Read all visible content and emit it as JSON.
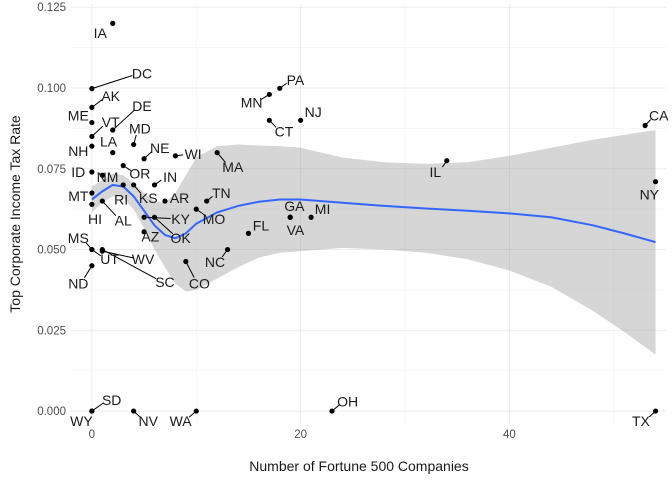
{
  "chart_data": {
    "type": "scatter",
    "title": "",
    "xlabel": "Number of Fortune 500 Companies",
    "ylabel": "Top Corporate Income Tax Rate",
    "xlim": [
      -2,
      55
    ],
    "ylim": [
      -0.004,
      0.126
    ],
    "x_ticks": [
      0,
      20,
      40
    ],
    "y_ticks": [
      0.0,
      0.025,
      0.05,
      0.075,
      0.1,
      0.125
    ],
    "y_tick_labels": [
      "0.000",
      "0.025",
      "0.050",
      "0.075",
      "0.100",
      "0.125"
    ],
    "grid": true,
    "smooth_color": "#3366FF",
    "band_color": "#999999",
    "points": [
      {
        "label": "IA",
        "x": 2,
        "y": 0.12,
        "lx": 0.8,
        "ly": 0.117
      },
      {
        "label": "DC",
        "x": 0,
        "y": 0.0998,
        "lx": 4.8,
        "ly": 0.1045
      },
      {
        "label": "AK",
        "x": 0,
        "y": 0.094,
        "lx": 1.8,
        "ly": 0.0975
      },
      {
        "label": "ME",
        "x": 0,
        "y": 0.0893,
        "lx": -1.3,
        "ly": 0.0915
      },
      {
        "label": "VT",
        "x": 0,
        "y": 0.085,
        "lx": 1.8,
        "ly": 0.0895
      },
      {
        "label": "DE",
        "x": 2,
        "y": 0.087,
        "lx": 4.8,
        "ly": 0.0945
      },
      {
        "label": "MD",
        "x": 4,
        "y": 0.0825,
        "lx": 4.6,
        "ly": 0.0875
      },
      {
        "label": "LA",
        "x": 2,
        "y": 0.08,
        "lx": 1.6,
        "ly": 0.0835
      },
      {
        "label": "NH",
        "x": 0,
        "y": 0.082,
        "lx": -1.3,
        "ly": 0.0805
      },
      {
        "label": "NE",
        "x": 5,
        "y": 0.0781,
        "lx": 6.5,
        "ly": 0.0815
      },
      {
        "label": "WI",
        "x": 8,
        "y": 0.079,
        "lx": 9.7,
        "ly": 0.0795
      },
      {
        "label": "MA",
        "x": 12,
        "y": 0.08,
        "lx": 13.5,
        "ly": 0.0755
      },
      {
        "label": "ID",
        "x": 0,
        "y": 0.074,
        "lx": -1.3,
        "ly": 0.074
      },
      {
        "label": "NM",
        "x": 1,
        "y": 0.073,
        "lx": 1.5,
        "ly": 0.0725
      },
      {
        "label": "OR",
        "x": 3,
        "y": 0.076,
        "lx": 4.6,
        "ly": 0.0735
      },
      {
        "label": "IN",
        "x": 6,
        "y": 0.07,
        "lx": 7.5,
        "ly": 0.0725
      },
      {
        "label": "MT",
        "x": 0,
        "y": 0.0675,
        "lx": -1.3,
        "ly": 0.0665
      },
      {
        "label": "RI",
        "x": 3,
        "y": 0.07,
        "lx": 2.8,
        "ly": 0.0655
      },
      {
        "label": "KS",
        "x": 4,
        "y": 0.07,
        "lx": 5.4,
        "ly": 0.066
      },
      {
        "label": "AR",
        "x": 7,
        "y": 0.065,
        "lx": 8.4,
        "ly": 0.066
      },
      {
        "label": "TN",
        "x": 11,
        "y": 0.065,
        "lx": 12.4,
        "ly": 0.0675
      },
      {
        "label": "HI",
        "x": 0,
        "y": 0.064,
        "lx": 0.3,
        "ly": 0.0595
      },
      {
        "label": "AL",
        "x": 1,
        "y": 0.065,
        "lx": 3,
        "ly": 0.059
      },
      {
        "label": "KY",
        "x": 5,
        "y": 0.06,
        "lx": 8.5,
        "ly": 0.0595
      },
      {
        "label": "MO",
        "x": 10,
        "y": 0.0625,
        "lx": 11.7,
        "ly": 0.0595
      },
      {
        "label": "GA",
        "x": 19,
        "y": 0.06,
        "lx": 19.4,
        "ly": 0.0635
      },
      {
        "label": "MI",
        "x": 21,
        "y": 0.06,
        "lx": 22.1,
        "ly": 0.0625
      },
      {
        "label": "FL",
        "x": 15,
        "y": 0.055,
        "lx": 16.2,
        "ly": 0.0575
      },
      {
        "label": "VA",
        "x": 19,
        "y": 0.06,
        "lx": 19.5,
        "ly": 0.056
      },
      {
        "label": "AZ",
        "x": 5,
        "y": 0.0555,
        "lx": 5.6,
        "ly": 0.054
      },
      {
        "label": "OK",
        "x": 6,
        "y": 0.06,
        "lx": 8.5,
        "ly": 0.0535
      },
      {
        "label": "MS",
        "x": 0,
        "y": 0.05,
        "lx": -1.3,
        "ly": 0.0535
      },
      {
        "label": "UT",
        "x": 0,
        "y": 0.05,
        "lx": 1.7,
        "ly": 0.047
      },
      {
        "label": "WV",
        "x": 1,
        "y": 0.0495,
        "lx": 4.9,
        "ly": 0.047
      },
      {
        "label": "NC",
        "x": 13,
        "y": 0.05,
        "lx": 11.8,
        "ly": 0.0462
      },
      {
        "label": "ND",
        "x": 0,
        "y": 0.045,
        "lx": -1.3,
        "ly": 0.0395
      },
      {
        "label": "SC",
        "x": 1,
        "y": 0.05,
        "lx": 7,
        "ly": 0.04
      },
      {
        "label": "CO",
        "x": 9,
        "y": 0.0463,
        "lx": 10.3,
        "ly": 0.0395
      },
      {
        "label": "PA",
        "x": 18,
        "y": 0.0999,
        "lx": 19.5,
        "ly": 0.1025
      },
      {
        "label": "MN",
        "x": 17,
        "y": 0.098,
        "lx": 15.3,
        "ly": 0.0955
      },
      {
        "label": "NJ",
        "x": 20,
        "y": 0.09,
        "lx": 21.2,
        "ly": 0.0925
      },
      {
        "label": "CT",
        "x": 17,
        "y": 0.09,
        "lx": 18.4,
        "ly": 0.0865
      },
      {
        "label": "IL",
        "x": 34,
        "y": 0.0775,
        "lx": 32.9,
        "ly": 0.074
      },
      {
        "label": "CA",
        "x": 53,
        "y": 0.0884,
        "lx": 54.3,
        "ly": 0.0915
      },
      {
        "label": "NY",
        "x": 54,
        "y": 0.071,
        "lx": 53.4,
        "ly": 0.067
      },
      {
        "label": "SD",
        "x": 0,
        "y": 0,
        "lx": 1.9,
        "ly": 0.0035
      },
      {
        "label": "WY",
        "x": 0,
        "y": 0,
        "lx": -1,
        "ly": -0.003
      },
      {
        "label": "NV",
        "x": 4,
        "y": 0,
        "lx": 5.4,
        "ly": -0.003
      },
      {
        "label": "WA",
        "x": 10,
        "y": 0,
        "lx": 8.5,
        "ly": -0.003
      },
      {
        "label": "OH",
        "x": 23,
        "y": 0,
        "lx": 24.5,
        "ly": 0.003
      },
      {
        "label": "TX",
        "x": 54,
        "y": 0,
        "lx": 52.6,
        "ly": -0.003
      }
    ],
    "smooth": [
      {
        "x": 0,
        "y": 0.0655,
        "lo": 0.0615,
        "hi": 0.0695
      },
      {
        "x": 1,
        "y": 0.068,
        "lo": 0.0645,
        "hi": 0.0715
      },
      {
        "x": 2,
        "y": 0.07,
        "lo": 0.0665,
        "hi": 0.0735
      },
      {
        "x": 3,
        "y": 0.0695,
        "lo": 0.066,
        "hi": 0.073
      },
      {
        "x": 4,
        "y": 0.0665,
        "lo": 0.0625,
        "hi": 0.0705
      },
      {
        "x": 5,
        "y": 0.062,
        "lo": 0.0565,
        "hi": 0.0675
      },
      {
        "x": 6,
        "y": 0.0575,
        "lo": 0.05,
        "hi": 0.065
      },
      {
        "x": 7,
        "y": 0.0545,
        "lo": 0.0445,
        "hi": 0.0645
      },
      {
        "x": 8,
        "y": 0.0535,
        "lo": 0.0395,
        "hi": 0.0675
      },
      {
        "x": 9,
        "y": 0.055,
        "lo": 0.037,
        "hi": 0.073
      },
      {
        "x": 10,
        "y": 0.058,
        "lo": 0.0375,
        "hi": 0.0785
      },
      {
        "x": 12,
        "y": 0.0615,
        "lo": 0.041,
        "hi": 0.082
      },
      {
        "x": 14,
        "y": 0.0635,
        "lo": 0.0445,
        "hi": 0.0825
      },
      {
        "x": 16,
        "y": 0.0648,
        "lo": 0.0475,
        "hi": 0.0822
      },
      {
        "x": 18,
        "y": 0.0655,
        "lo": 0.049,
        "hi": 0.082
      },
      {
        "x": 20,
        "y": 0.0655,
        "lo": 0.0495,
        "hi": 0.0815
      },
      {
        "x": 24,
        "y": 0.0645,
        "lo": 0.0505,
        "hi": 0.0785
      },
      {
        "x": 28,
        "y": 0.0635,
        "lo": 0.05,
        "hi": 0.077
      },
      {
        "x": 32,
        "y": 0.0627,
        "lo": 0.049,
        "hi": 0.0765
      },
      {
        "x": 36,
        "y": 0.062,
        "lo": 0.047,
        "hi": 0.077
      },
      {
        "x": 40,
        "y": 0.0612,
        "lo": 0.0435,
        "hi": 0.079
      },
      {
        "x": 44,
        "y": 0.06,
        "lo": 0.0385,
        "hi": 0.0815
      },
      {
        "x": 48,
        "y": 0.0575,
        "lo": 0.031,
        "hi": 0.084
      },
      {
        "x": 51,
        "y": 0.055,
        "lo": 0.0245,
        "hi": 0.0855
      },
      {
        "x": 54,
        "y": 0.0523,
        "lo": 0.0175,
        "hi": 0.087
      }
    ]
  }
}
